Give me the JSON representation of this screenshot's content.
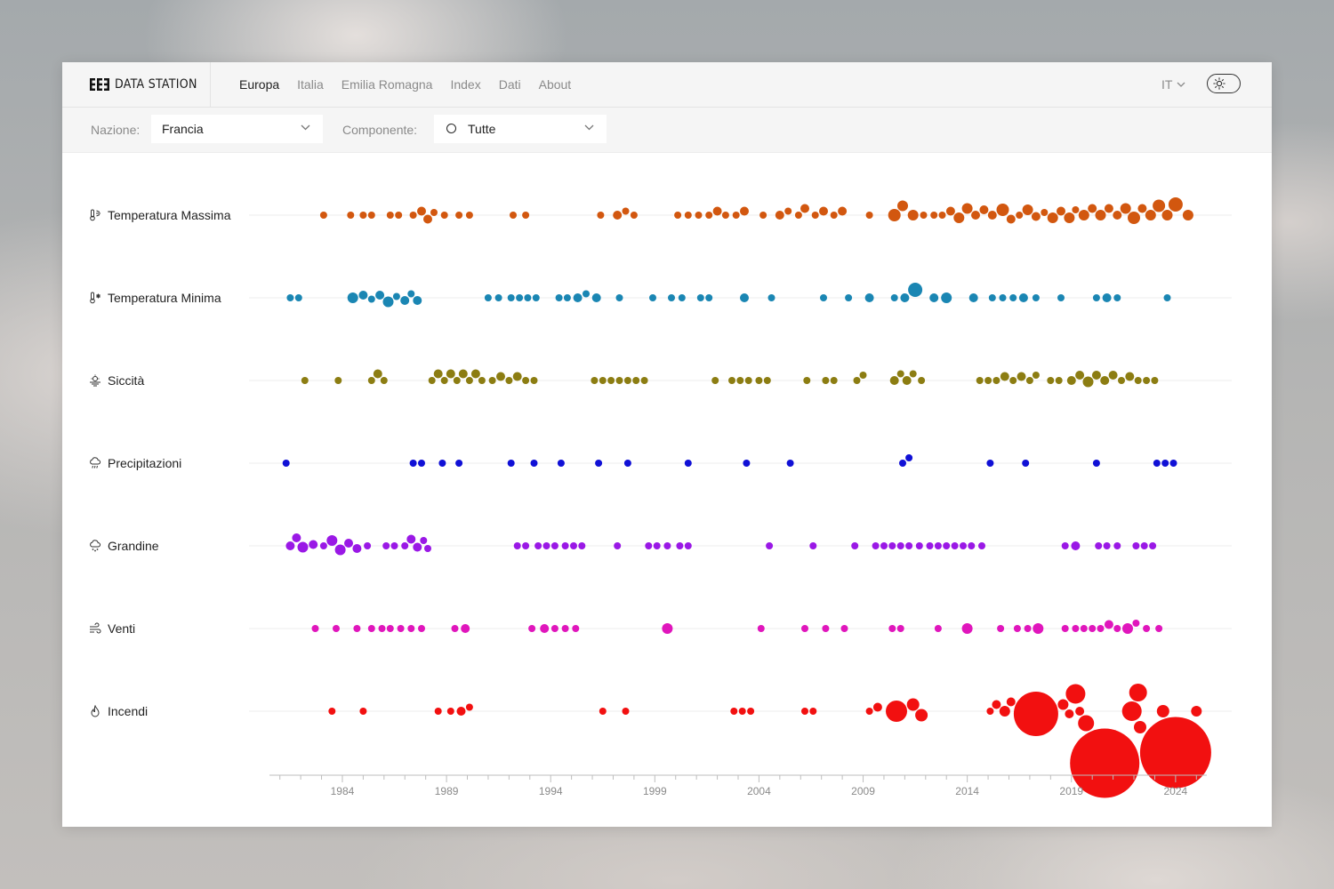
{
  "brand": {
    "name": "DATA STATION",
    "logo_icon": "ee3-logo-icon"
  },
  "nav": {
    "items": [
      {
        "label": "Europa",
        "active": true
      },
      {
        "label": "Italia",
        "active": false
      },
      {
        "label": "Emilia Romagna",
        "active": false
      },
      {
        "label": "Index",
        "active": false
      },
      {
        "label": "Dati",
        "active": false
      },
      {
        "label": "About",
        "active": false
      }
    ],
    "language": "IT",
    "theme_icon": "sun-icon"
  },
  "filters": {
    "nazione_label": "Nazione:",
    "nazione_value": "Francia",
    "componente_label": "Componente:",
    "componente_value": "Tutte"
  },
  "chart_data": {
    "type": "scatter",
    "subtype": "beeswarm",
    "x_axis": {
      "min": 1980.5,
      "max": 2025.5,
      "ticks": [
        1984,
        1989,
        1994,
        1999,
        2004,
        2009,
        2014,
        2019,
        2024
      ]
    },
    "series": [
      {
        "name": "Temperatura Massima",
        "icon": "thermometer-sun-icon",
        "color": "#d2570f",
        "years": [
          1983.1,
          1984.4,
          1985,
          1985.4,
          1986.3,
          1986.7,
          1987.4,
          1987.8,
          1988.1,
          1988.4,
          1988.9,
          1989.6,
          1990.1,
          1992.2,
          1992.8,
          1996.4,
          1997.2,
          1997.6,
          1998,
          2000.1,
          2000.6,
          2001.1,
          2001.6,
          2002,
          2002.4,
          2002.9,
          2003.3,
          2004.2,
          2005,
          2005.4,
          2005.9,
          2006.2,
          2006.7,
          2007.1,
          2007.6,
          2008,
          2009.3,
          2010.5,
          2010.9,
          2011.4,
          2011.9,
          2012.4,
          2012.8,
          2013.2,
          2013.6,
          2014,
          2014.4,
          2014.8,
          2015.2,
          2015.7,
          2016.1,
          2016.5,
          2016.9,
          2017.3,
          2017.7,
          2018.1,
          2018.5,
          2018.9,
          2019.2,
          2019.6,
          2020,
          2020.4,
          2020.8,
          2021.2,
          2021.6,
          2022,
          2022.4,
          2022.8,
          2023.2,
          2023.6,
          2024,
          2024.6
        ],
        "sizes": [
          8,
          8,
          8,
          8,
          8,
          8,
          8,
          10,
          10,
          8,
          8,
          8,
          8,
          8,
          8,
          8,
          10,
          8,
          8,
          8,
          8,
          8,
          8,
          10,
          8,
          8,
          10,
          8,
          10,
          8,
          8,
          10,
          8,
          10,
          8,
          10,
          8,
          14,
          12,
          12,
          8,
          8,
          8,
          10,
          12,
          12,
          10,
          10,
          10,
          14,
          10,
          8,
          12,
          10,
          8,
          12,
          10,
          12,
          8,
          12,
          10,
          12,
          10,
          10,
          12,
          14,
          10,
          12,
          14,
          12,
          16,
          12
        ]
      },
      {
        "name": "Temperatura Minima",
        "icon": "thermometer-snow-icon",
        "color": "#1a86b3",
        "years": [
          1981.5,
          1981.9,
          1984.5,
          1985,
          1985.4,
          1985.8,
          1986.2,
          1986.6,
          1987,
          1987.3,
          1987.6,
          1991,
          1991.5,
          1992.1,
          1992.5,
          1992.9,
          1993.3,
          1994.4,
          1994.8,
          1995.3,
          1995.7,
          1996.2,
          1997.3,
          1998.9,
          1999.8,
          2000.3,
          2001.2,
          2001.6,
          2003.3,
          2004.6,
          2007.1,
          2008.3,
          2009.3,
          2010.5,
          2011,
          2011.5,
          2012.4,
          2013,
          2014.3,
          2015.2,
          2015.7,
          2016.2,
          2016.7,
          2017.3,
          2018.5,
          2020.2,
          2020.7,
          2021.2,
          2023.6
        ],
        "sizes": [
          8,
          8,
          12,
          10,
          8,
          10,
          12,
          8,
          10,
          8,
          10,
          8,
          8,
          8,
          8,
          8,
          8,
          8,
          8,
          10,
          8,
          10,
          8,
          8,
          8,
          8,
          8,
          8,
          10,
          8,
          8,
          8,
          10,
          8,
          10,
          16,
          10,
          12,
          10,
          8,
          8,
          8,
          10,
          8,
          8,
          8,
          10,
          8,
          8
        ]
      },
      {
        "name": "Siccità",
        "icon": "sun-dry-icon",
        "color": "#8c7d12",
        "years": [
          1982.2,
          1983.8,
          1985.4,
          1985.7,
          1986,
          1988.3,
          1988.6,
          1988.9,
          1989.2,
          1989.5,
          1989.8,
          1990.1,
          1990.4,
          1990.7,
          1991.2,
          1991.6,
          1992,
          1992.4,
          1992.8,
          1993.2,
          1996.1,
          1996.5,
          1996.9,
          1997.3,
          1997.7,
          1998.1,
          1998.5,
          2001.9,
          2002.7,
          2003.1,
          2003.5,
          2004,
          2004.4,
          2006.3,
          2007.2,
          2007.6,
          2008.7,
          2009,
          2010.5,
          2010.8,
          2011.1,
          2011.4,
          2011.8,
          2014.6,
          2015,
          2015.4,
          2015.8,
          2016.2,
          2016.6,
          2017,
          2017.3,
          2018,
          2018.4,
          2019,
          2019.4,
          2019.8,
          2020.2,
          2020.6,
          2021,
          2021.4,
          2021.8,
          2022.2,
          2022.6,
          2023
        ],
        "sizes": [
          8,
          8,
          8,
          10,
          8,
          8,
          10,
          8,
          10,
          8,
          10,
          8,
          10,
          8,
          8,
          10,
          8,
          10,
          8,
          8,
          8,
          8,
          8,
          8,
          8,
          8,
          8,
          8,
          8,
          8,
          8,
          8,
          8,
          8,
          8,
          8,
          8,
          8,
          10,
          8,
          10,
          8,
          8,
          8,
          8,
          8,
          10,
          8,
          10,
          8,
          8,
          8,
          8,
          10,
          10,
          12,
          10,
          10,
          10,
          8,
          10,
          8,
          8,
          8
        ]
      },
      {
        "name": "Precipitazioni",
        "icon": "cloud-rain-icon",
        "color": "#1010d6",
        "years": [
          1981.3,
          1987.4,
          1987.8,
          1988.8,
          1989.6,
          1992.1,
          1993.2,
          1994.5,
          1996.3,
          1997.7,
          2000.6,
          2003.4,
          2005.5,
          2010.9,
          2011.2,
          2015.1,
          2016.8,
          2020.2,
          2023.1,
          2023.5,
          2023.9
        ],
        "sizes": [
          8,
          8,
          8,
          8,
          8,
          8,
          8,
          8,
          8,
          8,
          8,
          8,
          8,
          8,
          8,
          8,
          8,
          8,
          8,
          8,
          8
        ]
      },
      {
        "name": "Grandine",
        "icon": "cloud-hail-icon",
        "color": "#9a18e6",
        "years": [
          1981.5,
          1981.8,
          1982.1,
          1982.6,
          1983.1,
          1983.5,
          1983.9,
          1984.3,
          1984.7,
          1985.2,
          1986.1,
          1986.5,
          1987,
          1987.3,
          1987.6,
          1987.9,
          1988.1,
          1992.4,
          1992.8,
          1993.4,
          1993.8,
          1994.2,
          1994.7,
          1995.1,
          1995.5,
          1997.2,
          1998.7,
          1999.1,
          1999.6,
          2000.2,
          2000.6,
          2004.5,
          2006.6,
          2008.6,
          2009.6,
          2010,
          2010.4,
          2010.8,
          2011.2,
          2011.7,
          2012.2,
          2012.6,
          2013,
          2013.4,
          2013.8,
          2014.2,
          2014.7,
          2018.7,
          2019.2,
          2020.3,
          2020.7,
          2021.2,
          2022.1,
          2022.5,
          2022.9
        ],
        "sizes": [
          10,
          10,
          12,
          10,
          8,
          12,
          12,
          10,
          10,
          8,
          8,
          8,
          8,
          10,
          10,
          8,
          8,
          8,
          8,
          8,
          8,
          8,
          8,
          8,
          8,
          8,
          8,
          8,
          8,
          8,
          8,
          8,
          8,
          8,
          8,
          8,
          8,
          8,
          8,
          8,
          8,
          8,
          8,
          8,
          8,
          8,
          8,
          8,
          10,
          8,
          8,
          8,
          8,
          8,
          8
        ]
      },
      {
        "name": "Venti",
        "icon": "wind-icon",
        "color": "#e016bc",
        "years": [
          1982.7,
          1983.7,
          1984.7,
          1985.4,
          1985.9,
          1986.3,
          1986.8,
          1987.3,
          1987.8,
          1989.4,
          1989.9,
          1993.1,
          1993.7,
          1994.2,
          1994.7,
          1995.2,
          1999.6,
          2004.1,
          2006.2,
          2007.2,
          2008.1,
          2010.4,
          2010.8,
          2012.6,
          2014,
          2015.6,
          2016.4,
          2016.9,
          2017.4,
          2018.7,
          2019.2,
          2019.6,
          2020,
          2020.4,
          2020.8,
          2021.2,
          2021.7,
          2022.1,
          2022.6,
          2023.2
        ],
        "sizes": [
          8,
          8,
          8,
          8,
          8,
          8,
          8,
          8,
          8,
          8,
          10,
          8,
          10,
          8,
          8,
          8,
          12,
          8,
          8,
          8,
          8,
          8,
          8,
          8,
          12,
          8,
          8,
          8,
          12,
          8,
          8,
          8,
          8,
          8,
          10,
          8,
          12,
          8,
          8,
          8
        ]
      },
      {
        "name": "Incendi",
        "icon": "flame-icon",
        "color": "#f21010",
        "years": [
          1983.5,
          1985,
          1988.6,
          1989.2,
          1989.7,
          1990.1,
          1996.5,
          1997.6,
          2002.8,
          2003.2,
          2003.6,
          2006.2,
          2006.6,
          2009.3,
          2009.7,
          2010.6,
          2011.4,
          2011.8,
          2015.1,
          2015.4,
          2015.8,
          2016.1,
          2017.3,
          2018.6,
          2018.9,
          2019.2,
          2019.4,
          2019.7,
          2020.6,
          2021.9,
          2022.2,
          2022.3,
          2023.4,
          2024,
          2025
        ],
        "sizes": [
          8,
          8,
          8,
          8,
          10,
          8,
          8,
          8,
          8,
          8,
          8,
          8,
          8,
          8,
          10,
          24,
          14,
          14,
          8,
          10,
          12,
          10,
          50,
          12,
          10,
          22,
          10,
          18,
          78,
          22,
          20,
          14,
          14,
          80,
          12
        ]
      }
    ]
  }
}
